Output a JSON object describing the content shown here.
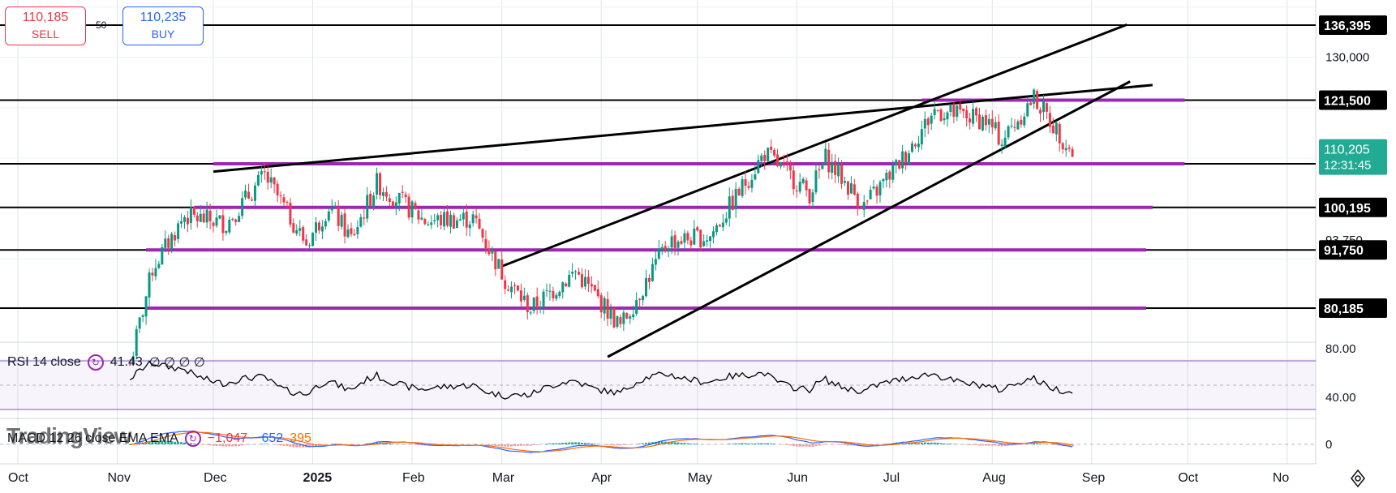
{
  "trade": {
    "sell_price": "110,185",
    "sell_label": "SELL",
    "buy_price": "110,235",
    "buy_label": "BUY",
    "spread": "50"
  },
  "indicators": {
    "rsi_title": "RSI 14 close",
    "rsi_value": "41.43",
    "rsi_extra": "∅ ∅ ∅ ∅",
    "macd_title": "MACD 12 26 close EMA EMA",
    "macd_hist": "−1,047",
    "macd_line": "−652",
    "macd_signal": "395"
  },
  "watermark": "TradingView",
  "colors": {
    "up": "#089981",
    "down": "#f23645",
    "purple": "#9c27b0",
    "black": "#000000",
    "current": "#22ab94",
    "rsi_band": "#7e57c2"
  },
  "chart_data": {
    "type": "candlestick",
    "x_ticks": [
      "Oct",
      "Nov",
      "Dec",
      "2025",
      "Feb",
      "Mar",
      "Apr",
      "May",
      "Jun",
      "Jul",
      "Aug",
      "Sep",
      "Oct",
      "No"
    ],
    "y_ticks": [
      {
        "label": "130,000",
        "value": 130000
      },
      {
        "label": "93,750",
        "value": 93750
      }
    ],
    "price_labels": [
      {
        "label": "136,395",
        "value": 136395
      },
      {
        "label": "121,500",
        "value": 121500
      },
      {
        "label": "108,855",
        "value": 108855
      },
      {
        "label": "100,195",
        "value": 100195
      },
      {
        "label": "91,750",
        "value": 91750
      },
      {
        "label": "80,185",
        "value": 80185
      }
    ],
    "current_price": {
      "price": "110,205",
      "countdown": "12:31:45",
      "value": 110205
    },
    "horizontal_levels": [
      136395,
      121500,
      108855,
      100195,
      91750,
      80185
    ],
    "zones": [
      {
        "value": 121500,
        "from": "2025-07-10",
        "to": "2025-09-30"
      },
      {
        "value": 108855,
        "from": "2024-12-01",
        "to": "2025-09-30"
      },
      {
        "value": 100195,
        "from": "2024-11-25",
        "to": "2025-09-20"
      },
      {
        "value": 91750,
        "from": "2024-11-10",
        "to": "2025-09-18"
      },
      {
        "value": 80185,
        "from": "2024-11-10",
        "to": "2025-09-18"
      }
    ],
    "trendlines": [
      {
        "from": [
          "2024-12-01",
          107300
        ],
        "to": [
          "2025-09-20",
          124500
        ]
      },
      {
        "from": [
          "2025-03-01",
          88500
        ],
        "to": [
          "2025-09-12",
          136500
        ]
      },
      {
        "from": [
          "2025-04-03",
          70500
        ],
        "to": [
          "2025-09-13",
          125200
        ]
      }
    ],
    "series": [
      {
        "name": "BTC",
        "checkpoints": [
          [
            "2024-11-05",
            69000
          ],
          [
            "2024-11-12",
            88000
          ],
          [
            "2024-11-22",
            98500
          ],
          [
            "2024-12-05",
            97000
          ],
          [
            "2024-12-17",
            106500
          ],
          [
            "2024-12-30",
            93000
          ],
          [
            "2025-01-06",
            100500
          ],
          [
            "2025-01-13",
            94000
          ],
          [
            "2025-01-21",
            105000
          ],
          [
            "2025-02-05",
            97500
          ],
          [
            "2025-02-20",
            98000
          ],
          [
            "2025-03-02",
            86000
          ],
          [
            "2025-03-10",
            80000
          ],
          [
            "2025-03-24",
            87500
          ],
          [
            "2025-04-07",
            76500
          ],
          [
            "2025-04-22",
            93500
          ],
          [
            "2025-05-05",
            94500
          ],
          [
            "2025-05-22",
            111000
          ],
          [
            "2025-06-05",
            103000
          ],
          [
            "2025-06-10",
            110000
          ],
          [
            "2025-06-22",
            100500
          ],
          [
            "2025-07-03",
            109000
          ],
          [
            "2025-07-14",
            119500
          ],
          [
            "2025-07-30",
            117500
          ],
          [
            "2025-08-04",
            113500
          ],
          [
            "2025-08-14",
            122000
          ],
          [
            "2025-08-27",
            110200
          ]
        ]
      }
    ],
    "rsi": {
      "ylim": [
        0,
        100
      ],
      "levels": [
        70,
        50,
        30
      ],
      "ticks": [
        "80.00",
        "40.00"
      ],
      "last": 41.43
    },
    "macd": {
      "ticks": [
        "0"
      ]
    }
  }
}
